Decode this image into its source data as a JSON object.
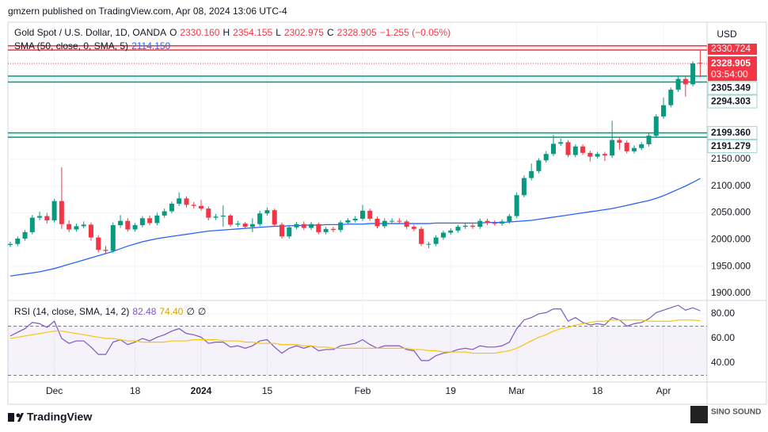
{
  "header": {
    "published": "gmzern published on TradingView.com, Apr 08, 2024 13:06 UTC-4",
    "brand": "TradingView",
    "watermark": "SINO SOUND"
  },
  "chart_data": [
    {
      "type": "candlestick",
      "title": "Gold Spot / U.S. Dollar, 1D, OANDA",
      "currency": "USD",
      "ohlc_legend": [
        {
          "label": "O",
          "value": "2330.160"
        },
        {
          "label": "H",
          "value": "2354.155"
        },
        {
          "label": "L",
          "value": "2302.975"
        },
        {
          "label": "C",
          "value": "2328.905"
        }
      ],
      "change": "−1.255 (−0.05%)",
      "up_color": "#089981",
      "down_color": "#f23645",
      "candles": [
        [
          1990,
          1996,
          1986,
          1992
        ],
        [
          1992,
          2006,
          1988,
          2002
        ],
        [
          2002,
          2018,
          1998,
          2014
        ],
        [
          2014,
          2046,
          2010,
          2041
        ],
        [
          2041,
          2052,
          2036,
          2044
        ],
        [
          2044,
          2050,
          2030,
          2036
        ],
        [
          2036,
          2076,
          2032,
          2072
        ],
        [
          2072,
          2135,
          2020,
          2029
        ],
        [
          2029,
          2036,
          2014,
          2019
        ],
        [
          2019,
          2030,
          2015,
          2025
        ],
        [
          2025,
          2034,
          2021,
          2028
        ],
        [
          2028,
          2032,
          1998,
          2004
        ],
        [
          2004,
          2008,
          1976,
          1981
        ],
        [
          1981,
          1988,
          1973,
          1979
        ],
        [
          1979,
          2032,
          1975,
          2027
        ],
        [
          2027,
          2046,
          2022,
          2035
        ],
        [
          2035,
          2040,
          2015,
          2019
        ],
        [
          2019,
          2031,
          2015,
          2027
        ],
        [
          2027,
          2044,
          2023,
          2040
        ],
        [
          2040,
          2045,
          2027,
          2031
        ],
        [
          2031,
          2050,
          2027,
          2045
        ],
        [
          2045,
          2058,
          2041,
          2053
        ],
        [
          2053,
          2071,
          2049,
          2067
        ],
        [
          2067,
          2088,
          2063,
          2077
        ],
        [
          2077,
          2081,
          2060,
          2065
        ],
        [
          2065,
          2070,
          2058,
          2063
        ],
        [
          2063,
          2074,
          2054,
          2058
        ],
        [
          2058,
          2062,
          2036,
          2041
        ],
        [
          2041,
          2048,
          2037,
          2043
        ],
        [
          2043,
          2064,
          2024,
          2045
        ],
        [
          2045,
          2048,
          2024,
          2028
        ],
        [
          2028,
          2035,
          2024,
          2030
        ],
        [
          2030,
          2033,
          2020,
          2024
        ],
        [
          2024,
          2040,
          2014,
          2029
        ],
        [
          2029,
          2054,
          2025,
          2049
        ],
        [
          2049,
          2060,
          2045,
          2055
        ],
        [
          2055,
          2058,
          2024,
          2028
        ],
        [
          2028,
          2032,
          2002,
          2006
        ],
        [
          2006,
          2027,
          2002,
          2023
        ],
        [
          2023,
          2033,
          2019,
          2029
        ],
        [
          2029,
          2034,
          2018,
          2022
        ],
        [
          2022,
          2033,
          2018,
          2029
        ],
        [
          2029,
          2032,
          2010,
          2014
        ],
        [
          2014,
          2024,
          2010,
          2020
        ],
        [
          2020,
          2024,
          2014,
          2018
        ],
        [
          2018,
          2036,
          2014,
          2032
        ],
        [
          2032,
          2040,
          2028,
          2036
        ],
        [
          2036,
          2044,
          2032,
          2039
        ],
        [
          2039,
          2065,
          2035,
          2054
        ],
        [
          2054,
          2058,
          2035,
          2039
        ],
        [
          2039,
          2043,
          2021,
          2025
        ],
        [
          2025,
          2040,
          2021,
          2035
        ],
        [
          2035,
          2040,
          2031,
          2035
        ],
        [
          2035,
          2040,
          2030,
          2034
        ],
        [
          2034,
          2037,
          2020,
          2024
        ],
        [
          2024,
          2028,
          2016,
          2020
        ],
        [
          2020,
          2024,
          1988,
          1992
        ],
        [
          1992,
          1996,
          1984,
          1992
        ],
        [
          1992,
          2008,
          1988,
          2004
        ],
        [
          2004,
          2017,
          2000,
          2013
        ],
        [
          2013,
          2021,
          2009,
          2017
        ],
        [
          2017,
          2028,
          2013,
          2024
        ],
        [
          2024,
          2031,
          2020,
          2026
        ],
        [
          2026,
          2030,
          2020,
          2024
        ],
        [
          2024,
          2039,
          2020,
          2035
        ],
        [
          2035,
          2039,
          2027,
          2031
        ],
        [
          2031,
          2036,
          2026,
          2030
        ],
        [
          2030,
          2038,
          2026,
          2034
        ],
        [
          2034,
          2048,
          2030,
          2044
        ],
        [
          2044,
          2088,
          2040,
          2083
        ],
        [
          2083,
          2120,
          2079,
          2115
        ],
        [
          2115,
          2142,
          2111,
          2128
        ],
        [
          2128,
          2152,
          2124,
          2148
        ],
        [
          2148,
          2165,
          2144,
          2160
        ],
        [
          2160,
          2195,
          2156,
          2179
        ],
        [
          2179,
          2189,
          2175,
          2182
        ],
        [
          2182,
          2186,
          2154,
          2158
        ],
        [
          2158,
          2178,
          2154,
          2174
        ],
        [
          2174,
          2178,
          2158,
          2162
        ],
        [
          2162,
          2166,
          2146,
          2155
        ],
        [
          2155,
          2164,
          2151,
          2160
        ],
        [
          2160,
          2164,
          2147,
          2157
        ],
        [
          2157,
          2222,
          2153,
          2186
        ],
        [
          2186,
          2190,
          2168,
          2181
        ],
        [
          2181,
          2185,
          2161,
          2165
        ],
        [
          2165,
          2176,
          2161,
          2171
        ],
        [
          2171,
          2182,
          2167,
          2178
        ],
        [
          2178,
          2198,
          2174,
          2194
        ],
        [
          2194,
          2234,
          2190,
          2230
        ],
        [
          2230,
          2265,
          2226,
          2251
        ],
        [
          2251,
          2284,
          2247,
          2280
        ],
        [
          2280,
          2305,
          2276,
          2300
        ],
        [
          2300,
          2305,
          2267,
          2290
        ],
        [
          2290,
          2333,
          2286,
          2329
        ],
        [
          2330.16,
          2354.155,
          2302.975,
          2328.905
        ]
      ],
      "sma": {
        "legend": "SMA (50, close, 0, SMA, 5)",
        "value_label": "2114.150",
        "color": "#2962ff",
        "values": [
          1932,
          1934,
          1936,
          1938,
          1940,
          1943,
          1946,
          1950,
          1954,
          1958,
          1962,
          1966,
          1970,
          1974,
          1978,
          1983,
          1988,
          1992,
          1996,
          1999,
          2002,
          2004,
          2006,
          2008,
          2010,
          2012,
          2014,
          2016,
          2017,
          2018,
          2019,
          2020,
          2021,
          2022,
          2023,
          2024,
          2025,
          2025,
          2026,
          2026,
          2027,
          2027,
          2027,
          2028,
          2028,
          2028,
          2029,
          2029,
          2029,
          2030,
          2030,
          2030,
          2030,
          2030,
          2030,
          2030,
          2030,
          2030,
          2031,
          2031,
          2031,
          2031,
          2031,
          2031,
          2031,
          2032,
          2032,
          2032,
          2033,
          2034,
          2035,
          2036,
          2038,
          2040,
          2042,
          2044,
          2046,
          2048,
          2050,
          2052,
          2054,
          2056,
          2058,
          2061,
          2064,
          2067,
          2070,
          2073,
          2077,
          2082,
          2088,
          2094,
          2100,
          2107,
          2114.15
        ]
      },
      "zones": [
        {
          "color": "#f23645",
          "levels": [
            2354,
            2362
          ]
        },
        {
          "color": "#089981",
          "levels": [
            {
              "value": 2305.349,
              "label": "2305.349"
            },
            {
              "value": 2294.303,
              "label": "2294.303"
            }
          ]
        },
        {
          "color": "#089981",
          "levels": [
            {
              "value": 2199.36,
              "label": "2199.360"
            },
            {
              "value": 2191.279,
              "label": "2191.279"
            }
          ]
        }
      ],
      "top_label": "2330.724",
      "last_price": {
        "value": 2328.905,
        "countdown": "03:54:00"
      },
      "ylim": [
        1888,
        2406
      ],
      "yticks": [
        {
          "value": 2150,
          "label": "2150.000"
        },
        {
          "value": 2100,
          "label": "2100.000"
        },
        {
          "value": 2050,
          "label": "2050.000"
        },
        {
          "value": 2000,
          "label": "2000.000"
        },
        {
          "value": 1950,
          "label": "1950.000"
        },
        {
          "value": 1900,
          "label": "1900.000"
        }
      ],
      "xticks": [
        {
          "value": 6,
          "label": "Dec"
        },
        {
          "value": 17,
          "label": "18"
        },
        {
          "value": 26,
          "label": "2024"
        },
        {
          "value": 35,
          "label": "15"
        },
        {
          "value": 48,
          "label": "Feb"
        },
        {
          "value": 60,
          "label": "19"
        },
        {
          "value": 69,
          "label": "Mar"
        },
        {
          "value": 80,
          "label": "18"
        },
        {
          "value": 89,
          "label": "Apr"
        }
      ],
      "grid": true
    },
    {
      "type": "line",
      "title": "RSI (14, close, SMA, 14, 2)",
      "null_labels": [
        "∅",
        "∅"
      ],
      "band": [
        30,
        70
      ],
      "band_color": "#7e57c2",
      "series": [
        {
          "color": "#7e57c2",
          "value_label": "82.48",
          "values": [
            62,
            65,
            68,
            73,
            72,
            69,
            74,
            60,
            56,
            58,
            58,
            53,
            47,
            47,
            57,
            59,
            55,
            57,
            60,
            58,
            61,
            63,
            66,
            68,
            64,
            63,
            61,
            56,
            57,
            57,
            53,
            54,
            52,
            54,
            58,
            59,
            53,
            48,
            52,
            54,
            52,
            54,
            50,
            51,
            51,
            54,
            55,
            56,
            59,
            55,
            52,
            54,
            54,
            54,
            51,
            50,
            42,
            42,
            46,
            48,
            49,
            51,
            52,
            51,
            54,
            53,
            53,
            54,
            57,
            68,
            75,
            77,
            80,
            81,
            84,
            84,
            74,
            77,
            73,
            71,
            72,
            71,
            77,
            75,
            70,
            72,
            73,
            76,
            81,
            83,
            85,
            87,
            83,
            85,
            82.48
          ]
        },
        {
          "color": "#f7c510",
          "value_label": "74.40",
          "values": [
            60,
            61,
            62,
            63,
            64,
            65,
            66,
            66,
            65,
            64,
            63,
            62,
            61,
            60,
            60,
            59,
            58,
            58,
            57,
            57,
            57,
            57,
            58,
            58,
            58,
            59,
            59,
            59,
            59,
            58,
            58,
            58,
            57,
            57,
            56,
            56,
            56,
            55,
            55,
            55,
            54,
            54,
            53,
            53,
            52,
            52,
            52,
            52,
            52,
            52,
            52,
            52,
            52,
            52,
            52,
            51,
            51,
            50,
            50,
            49,
            49,
            49,
            49,
            48,
            48,
            48,
            48,
            49,
            50,
            52,
            55,
            58,
            61,
            63,
            66,
            68,
            69,
            71,
            72,
            73,
            74,
            74,
            75,
            75,
            75,
            75,
            75,
            74,
            74,
            74,
            74,
            75,
            75,
            75,
            74.4
          ]
        }
      ],
      "ylim": [
        24.5,
        90.3
      ],
      "yticks": [
        {
          "value": 80,
          "label": "80.00"
        },
        {
          "value": 60,
          "label": "60.00"
        },
        {
          "value": 40,
          "label": "40.00"
        }
      ]
    }
  ]
}
